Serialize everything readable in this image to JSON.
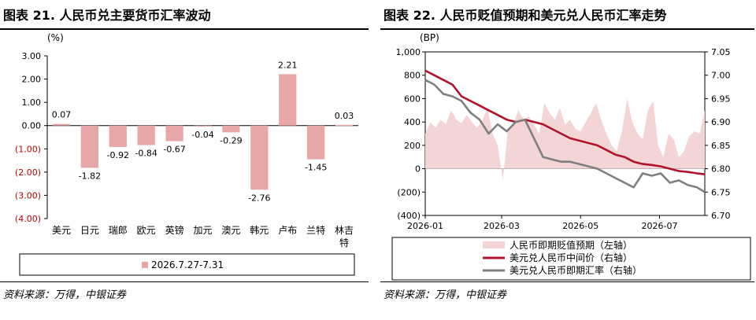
{
  "left_panel": {
    "title": "图表 21. 人民币兑主要货币汇率波动",
    "source": "资料来源：万得，中银证券"
  },
  "right_panel": {
    "title": "图表 22. 人民币贬值预期和美元兑人民币汇率走势",
    "source": "资料来源：万得，中银证券"
  },
  "colors": {
    "bar": "#e8a7a7",
    "area": "#f4d5d5",
    "red_line": "#b0132b",
    "gray_line": "#7f7f7f",
    "negative_tick": "#c00000"
  },
  "chart_data": [
    {
      "type": "bar",
      "unit_label": "(%)",
      "categories": [
        "美元",
        "日元",
        "瑞郎",
        "欧元",
        "英镑",
        "加元",
        "澳元",
        "韩元",
        "卢布",
        "兰特",
        "林吉特"
      ],
      "values": [
        0.07,
        -1.82,
        -0.92,
        -0.84,
        -0.67,
        -0.04,
        -0.29,
        -2.76,
        2.21,
        -1.45,
        0.03
      ],
      "data_labels": [
        "0.07",
        "-1.82",
        "-0.92",
        "-0.84",
        "-0.67",
        "-0.04",
        "-0.29",
        "-2.76",
        "2.21",
        "-1.45",
        "0.03"
      ],
      "ylim": [
        -4,
        3
      ],
      "yticks": [
        3,
        2,
        1,
        0,
        -1,
        -2,
        -3,
        -4
      ],
      "ytick_labels": [
        "3.00",
        "2.00",
        "1.00",
        "0.00",
        "(1.00)",
        "(2.00)",
        "(3.00)",
        "(4.00)"
      ],
      "series": [
        {
          "name": "2026.7.27-7.31",
          "values": [
            0.07,
            -1.82,
            -0.92,
            -0.84,
            -0.67,
            -0.04,
            -0.29,
            -2.76,
            2.21,
            -1.45,
            0.03
          ]
        }
      ],
      "legend_position": "bottom",
      "grid": false
    },
    {
      "type": "line",
      "left_unit_label": "(BP)",
      "x_domain": [
        "2026-01-01",
        "2026-08-05"
      ],
      "xticks": [
        "2026-01-01",
        "2026-03-01",
        "2026-05-01",
        "2026-07-01"
      ],
      "xtick_labels": [
        "2026-01",
        "2026-03",
        "2026-05",
        "2026-07"
      ],
      "left_ylim": [
        -400,
        1000
      ],
      "left_ticks": [
        1000,
        800,
        600,
        400,
        200,
        0,
        -200,
        -400
      ],
      "left_tick_labels": [
        "1,000",
        "800",
        "600",
        "400",
        "200",
        "0",
        "(200)",
        "(400)"
      ],
      "right_ylim": [
        6.7,
        7.05
      ],
      "right_ticks": [
        7.05,
        7.0,
        6.95,
        6.9,
        6.85,
        6.8,
        6.75,
        6.7
      ],
      "right_tick_labels": [
        "7.05",
        "7.00",
        "6.95",
        "6.90",
        "6.85",
        "6.80",
        "6.75",
        "6.70"
      ],
      "legend_position": "bottom",
      "grid": false,
      "series": [
        {
          "name": "人民币即期贬值预期（左轴）",
          "axis": "left",
          "kind": "area",
          "x": [
            "2026-01-01",
            "2026-01-05",
            "2026-01-09",
            "2026-01-13",
            "2026-01-17",
            "2026-01-21",
            "2026-01-25",
            "2026-01-29",
            "2026-02-02",
            "2026-02-06",
            "2026-02-10",
            "2026-02-14",
            "2026-02-18",
            "2026-02-22",
            "2026-02-26",
            "2026-03-02",
            "2026-03-06",
            "2026-03-10",
            "2026-03-14",
            "2026-03-18",
            "2026-03-22",
            "2026-03-26",
            "2026-03-30",
            "2026-04-03",
            "2026-04-07",
            "2026-04-11",
            "2026-04-15",
            "2026-04-19",
            "2026-04-23",
            "2026-04-27",
            "2026-05-01",
            "2026-05-05",
            "2026-05-09",
            "2026-05-13",
            "2026-05-17",
            "2026-05-21",
            "2026-05-25",
            "2026-05-29",
            "2026-06-02",
            "2026-06-06",
            "2026-06-10",
            "2026-06-14",
            "2026-06-18",
            "2026-06-22",
            "2026-06-26",
            "2026-06-30",
            "2026-07-04",
            "2026-07-08",
            "2026-07-12",
            "2026-07-16",
            "2026-07-20",
            "2026-07-24",
            "2026-07-28",
            "2026-08-01",
            "2026-08-05"
          ],
          "values": [
            300,
            400,
            350,
            420,
            380,
            500,
            420,
            390,
            460,
            400,
            350,
            410,
            520,
            300,
            200,
            -100,
            350,
            380,
            500,
            420,
            450,
            380,
            300,
            560,
            480,
            420,
            520,
            380,
            420,
            340,
            320,
            400,
            480,
            560,
            420,
            300,
            200,
            150,
            320,
            600,
            400,
            300,
            250,
            500,
            580,
            200,
            100,
            300,
            250,
            100,
            150,
            280,
            320,
            300,
            500
          ]
        },
        {
          "name": "美元兑人民币中间价（右轴）",
          "axis": "right",
          "kind": "line",
          "x": [
            "2026-01-01",
            "2026-01-08",
            "2026-01-15",
            "2026-01-22",
            "2026-01-29",
            "2026-02-05",
            "2026-02-12",
            "2026-02-19",
            "2026-02-26",
            "2026-03-05",
            "2026-03-12",
            "2026-03-19",
            "2026-03-26",
            "2026-04-02",
            "2026-04-09",
            "2026-04-16",
            "2026-04-23",
            "2026-04-30",
            "2026-05-07",
            "2026-05-14",
            "2026-05-21",
            "2026-05-28",
            "2026-06-04",
            "2026-06-11",
            "2026-06-18",
            "2026-06-25",
            "2026-07-02",
            "2026-07-09",
            "2026-07-16",
            "2026-07-23",
            "2026-07-30",
            "2026-08-05"
          ],
          "values": [
            7.01,
            7.0,
            6.99,
            6.98,
            6.955,
            6.945,
            6.935,
            6.925,
            6.915,
            6.905,
            6.9,
            6.905,
            6.9,
            6.895,
            6.885,
            6.875,
            6.865,
            6.86,
            6.855,
            6.85,
            6.84,
            6.83,
            6.825,
            6.815,
            6.81,
            6.808,
            6.805,
            6.8,
            6.795,
            6.793,
            6.79,
            6.788
          ]
        },
        {
          "name": "美元兑人民币即期汇率（右轴）",
          "axis": "right",
          "kind": "line",
          "x": [
            "2026-01-01",
            "2026-01-08",
            "2026-01-15",
            "2026-01-22",
            "2026-01-29",
            "2026-02-05",
            "2026-02-12",
            "2026-02-19",
            "2026-02-26",
            "2026-03-05",
            "2026-03-12",
            "2026-03-19",
            "2026-03-26",
            "2026-04-02",
            "2026-04-09",
            "2026-04-16",
            "2026-04-23",
            "2026-04-30",
            "2026-05-07",
            "2026-05-14",
            "2026-05-21",
            "2026-05-28",
            "2026-06-04",
            "2026-06-11",
            "2026-06-18",
            "2026-06-25",
            "2026-07-02",
            "2026-07-09",
            "2026-07-16",
            "2026-07-23",
            "2026-07-30",
            "2026-08-05"
          ],
          "values": [
            6.99,
            6.98,
            6.96,
            6.955,
            6.945,
            6.92,
            6.905,
            6.875,
            6.895,
            6.88,
            6.9,
            6.905,
            6.865,
            6.825,
            6.82,
            6.815,
            6.815,
            6.81,
            6.805,
            6.8,
            6.79,
            6.78,
            6.77,
            6.76,
            6.79,
            6.785,
            6.79,
            6.77,
            6.775,
            6.765,
            6.76,
            6.75
          ]
        }
      ]
    }
  ]
}
